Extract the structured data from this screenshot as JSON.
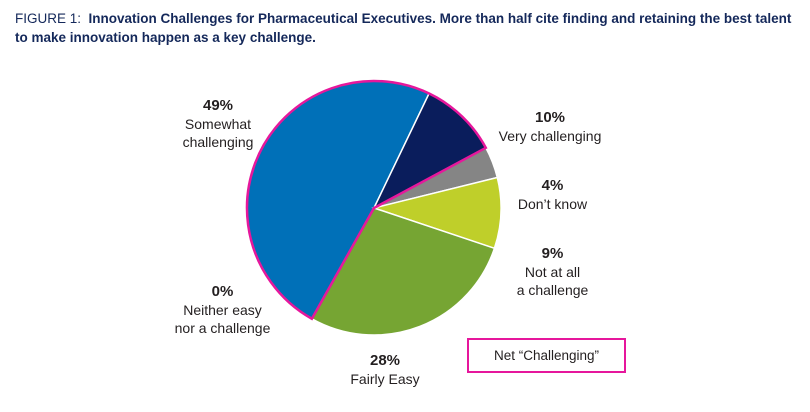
{
  "figure_label": "FIGURE 1:",
  "chart_data": {
    "type": "pie",
    "title": "Innovation Challenges for Pharmaceutical Executives. More than half cite finding and retaining the best talent to make innovation happen as a key challenge.",
    "unit": "%",
    "slices": [
      {
        "label": "Somewhat challenging",
        "label_lines": [
          "Somewhat",
          "challenging"
        ],
        "value": 49,
        "pct_text": "49%",
        "color": "#0070b8",
        "net_challenging": true
      },
      {
        "label": "Very challenging",
        "label_lines": [
          "Very challenging"
        ],
        "value": 10,
        "pct_text": "10%",
        "color": "#0a1d5c",
        "net_challenging": true
      },
      {
        "label": "Don’t know",
        "label_lines": [
          "Don’t know"
        ],
        "value": 4,
        "pct_text": "4%",
        "color": "#858585",
        "net_challenging": false
      },
      {
        "label": "Not at all a challenge",
        "label_lines": [
          "Not at all",
          "a challenge"
        ],
        "value": 9,
        "pct_text": "9%",
        "color": "#bfcf2a",
        "net_challenging": false
      },
      {
        "label": "Fairly Easy",
        "label_lines": [
          "Fairly Easy"
        ],
        "value": 28,
        "pct_text": "28%",
        "color": "#76a533",
        "net_challenging": false
      },
      {
        "label": "Neither easy nor a challenge",
        "label_lines": [
          "Neither easy",
          "nor a challenge"
        ],
        "value": 0,
        "pct_text": "0%",
        "color": "#76a533",
        "net_challenging": false
      }
    ],
    "highlight": {
      "label": "Net “Challenging”",
      "color": "#e6179c"
    }
  }
}
